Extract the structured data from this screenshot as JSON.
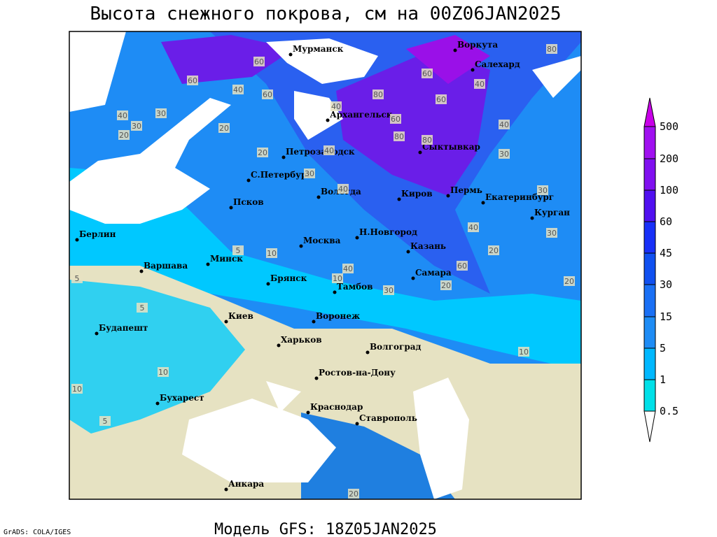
{
  "header": {
    "title": "Высота снежного покрова, см на 00Z06JAN2025"
  },
  "cities": [
    "Мурманск",
    "Воркута",
    "Салехард",
    "Архангельск",
    "Петрозаводск",
    "Сыктывкар",
    "С.Петербург",
    "Вологда",
    "Киров",
    "Пермь",
    "Екатеринбург",
    "Курган",
    "Псков",
    "Н.Новгород",
    "Москва",
    "Казань",
    "Берлин",
    "Варшава",
    "Минск",
    "Брянск",
    "Тамбов",
    "Самара",
    "Киев",
    "Воронеж",
    "Будапешт",
    "Харьков",
    "Волгоград",
    "Ростов-на-Дону",
    "Бухарест",
    "Краснодар",
    "Ставрополь",
    "Анкара"
  ],
  "contour_labels": [
    60,
    60,
    40,
    60,
    30,
    40,
    30,
    40,
    20,
    20,
    40,
    20,
    30,
    40,
    60,
    80,
    80,
    60,
    40,
    40,
    30,
    40,
    30,
    30,
    10,
    5,
    10,
    5,
    5,
    10,
    10,
    5,
    20,
    20,
    30,
    40,
    20,
    10,
    60,
    80,
    60,
    80,
    20
  ],
  "colorbar": {
    "levels": [
      500,
      200,
      100,
      60,
      45,
      30,
      15,
      5,
      1,
      0.5
    ]
  },
  "footer": {
    "model": "Модель GFS: 18Z05JAN2025",
    "credit": "GrADS: COLA/IGES"
  }
}
